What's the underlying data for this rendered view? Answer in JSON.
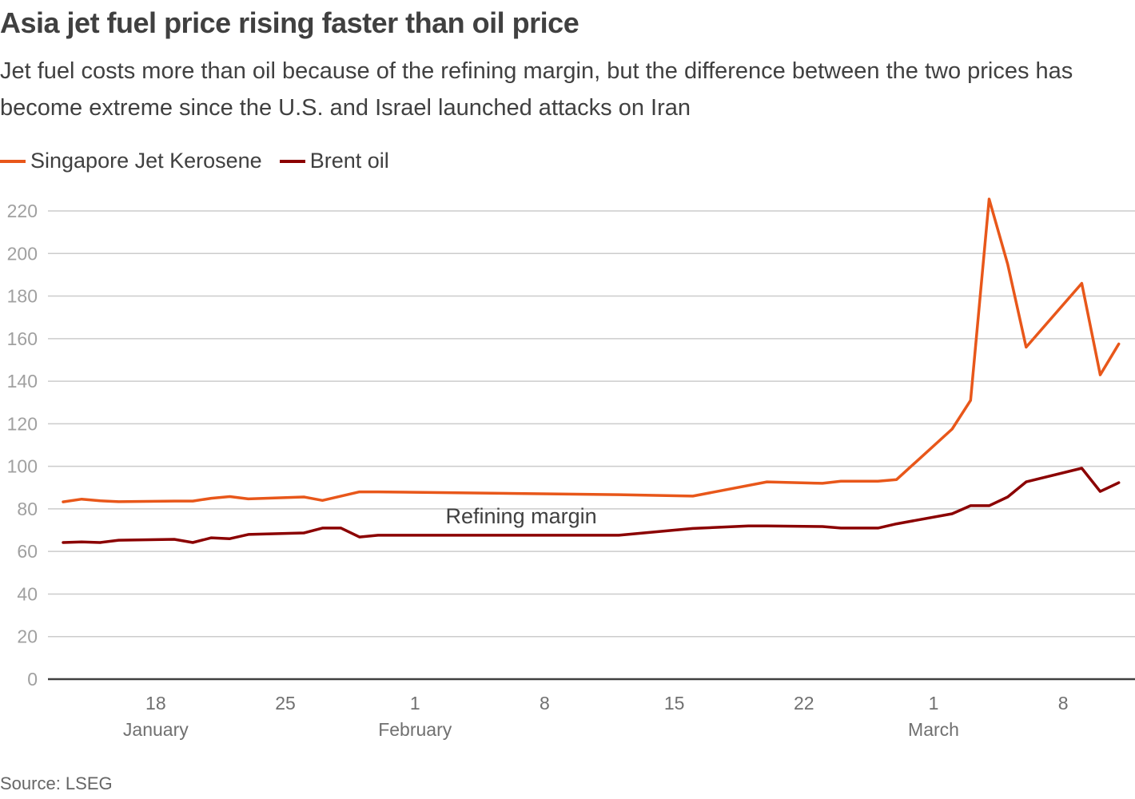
{
  "header": {
    "title": "Asia jet fuel price rising faster than oil price",
    "subtitle": "Jet fuel costs more than oil because of the refining margin, but the difference between the two prices has become extreme since the U.S. and Israel launched attacks on Iran"
  },
  "footer": {
    "source": "Source: LSEG"
  },
  "chart_data": {
    "type": "line",
    "title": "Asia jet fuel price rising faster than oil price",
    "xlabel": "",
    "ylabel": "",
    "ylim": [
      0,
      220
    ],
    "yticks": [
      0,
      20,
      40,
      60,
      80,
      100,
      120,
      140,
      160,
      180,
      200,
      220
    ],
    "grid": true,
    "legend_position": "top-left",
    "x_start_date": "Jan 13",
    "x_end_date": "Mar 11",
    "xticks": [
      {
        "day": 18,
        "label": "18",
        "month_label": "January"
      },
      {
        "day": 25,
        "label": "25",
        "month_label": ""
      },
      {
        "day": 32,
        "label": "1",
        "month_label": "February"
      },
      {
        "day": 39,
        "label": "8",
        "month_label": ""
      },
      {
        "day": 46,
        "label": "15",
        "month_label": ""
      },
      {
        "day": 53,
        "label": "22",
        "month_label": ""
      },
      {
        "day": 60,
        "label": "1",
        "month_label": "March"
      },
      {
        "day": 67,
        "label": "8",
        "month_label": ""
      }
    ],
    "x_note": "x values are day-of-year (Jan 1 = 1)",
    "annotations": [
      {
        "text": "Refining margin",
        "day": 37,
        "value": 77
      }
    ],
    "series": [
      {
        "name": "Singapore Jet Kerosene",
        "color": "#e8571a",
        "x": [
          13,
          14,
          15,
          16,
          19,
          20,
          21,
          22,
          23,
          26,
          27,
          28,
          29,
          30,
          43,
          47,
          51,
          54,
          55,
          57,
          58,
          61,
          62,
          63,
          64,
          65,
          68,
          69,
          70
        ],
        "values": [
          83.3,
          84.6,
          83.8,
          83.4,
          83.7,
          83.7,
          85.0,
          85.8,
          84.7,
          85.6,
          84.0,
          86.0,
          88.0,
          88.0,
          86.7,
          86.0,
          92.7,
          92.0,
          93.0,
          93.0,
          93.8,
          117.5,
          131.0,
          225.6,
          195.0,
          156.0,
          186.0,
          143.0,
          157.5
        ]
      },
      {
        "name": "Brent oil",
        "color": "#8b0000",
        "x": [
          13,
          14,
          15,
          16,
          19,
          20,
          21,
          22,
          23,
          26,
          27,
          28,
          29,
          30,
          43,
          47,
          50,
          51,
          54,
          55,
          57,
          58,
          61,
          62,
          63,
          64,
          65,
          68,
          69,
          70
        ],
        "values": [
          64.2,
          64.5,
          64.2,
          65.3,
          65.7,
          64.2,
          66.4,
          66.0,
          68.0,
          68.7,
          71.0,
          71.0,
          66.8,
          67.6,
          67.6,
          70.8,
          72.0,
          72.0,
          71.7,
          71.0,
          71.0,
          73.0,
          77.7,
          81.5,
          81.5,
          85.6,
          92.7,
          99.1,
          88.2,
          92.3
        ]
      }
    ]
  }
}
